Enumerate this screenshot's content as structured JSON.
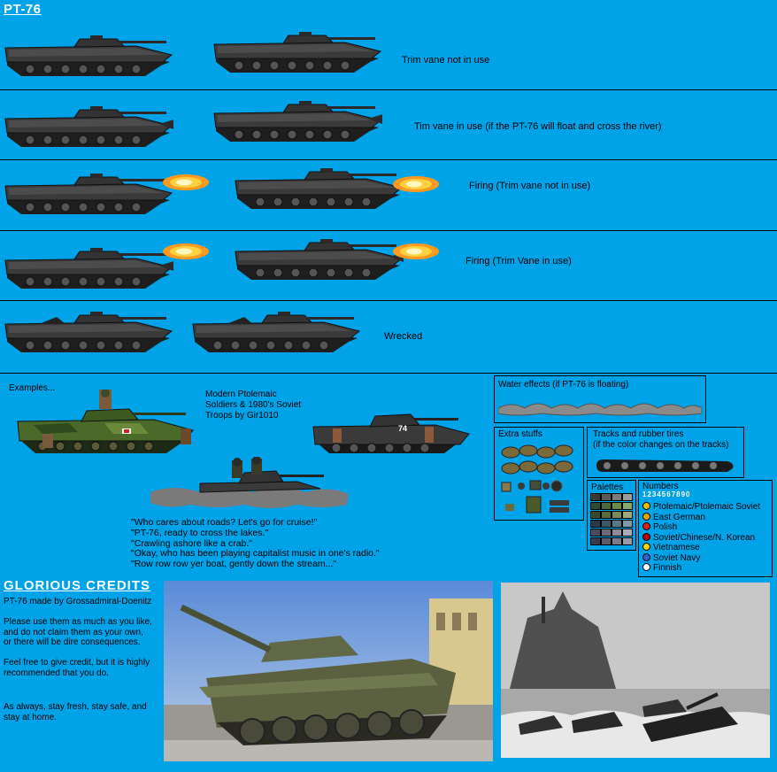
{
  "sheet": {
    "title": "PT-76"
  },
  "rows": [
    {
      "label": "Trim vane not in use"
    },
    {
      "label": "Tim vane in use (if the PT-76 will float and cross the river)"
    },
    {
      "label": "Firing (Trim vane not in use)"
    },
    {
      "label": "Firing (Trim Vane in use)"
    },
    {
      "label": "Wrecked"
    }
  ],
  "examples": {
    "label": "Examples...",
    "credit_lines": [
      "Modern Ptolemaic",
      "Soldiers & 1980's Soviet",
      "Troops by Gir1010"
    ],
    "hull_number": "74",
    "quotes": [
      "\"Who cares about roads? Let's go for cruise!\"",
      "\"PT-76, ready to cross the lakes.\"",
      "\"Crawling ashore like a crab.\"",
      "\"Okay, who has been playing capitalist music in one's radio.\"",
      "\"Row row row yer boat, gently down the stream...\""
    ]
  },
  "water": {
    "label": "Water effects (if PT-76 is floating)"
  },
  "extras": {
    "label": "Extra stuffs"
  },
  "tracks": {
    "label": "Tracks and rubber tires",
    "sublabel": "(if the color changes on the tracks)"
  },
  "palettes": {
    "label": "Palettes",
    "colors": [
      [
        "#3a3a3a",
        "#5a5a5a",
        "#7a7a7a",
        "#9a9a9a"
      ],
      [
        "#2f4a2f",
        "#4a6a3a",
        "#6a8a4a",
        "#8aa86a"
      ],
      [
        "#3a4a2a",
        "#5a6a3a",
        "#7a8a5a",
        "#9aa87a"
      ],
      [
        "#2a3a4a",
        "#3a5a6a",
        "#5a7a8a",
        "#7a9aa8"
      ],
      [
        "#4a4a5a",
        "#6a6a7a",
        "#8a8a9a",
        "#aaaabc"
      ],
      [
        "#3a3a4a",
        "#5a5a6a",
        "#7a7a8a",
        "#9a9aa8"
      ]
    ]
  },
  "numbers": {
    "label": "Numbers",
    "digits": "1234567890",
    "factions": [
      {
        "name": "Ptolemaic/Ptolemaic Soviet",
        "color": "#e8c000"
      },
      {
        "name": "East German",
        "color": "#e8a000"
      },
      {
        "name": "Polish",
        "color": "#e02020"
      },
      {
        "name": "Soviet/Chinese/N. Korean",
        "color": "#c00000"
      },
      {
        "name": "Vietnamese",
        "color": "#ffd000"
      },
      {
        "name": "Soviet Navy",
        "color": "#3060d0"
      },
      {
        "name": "Finnish",
        "color": "#ffffff"
      }
    ]
  },
  "credits": {
    "title": "GLORIOUS CREDITS",
    "author": "PT-76 made by Grossadmiral-Doenitz",
    "para1": [
      "Please use them as much as you like,",
      "and do not claim them as your own,",
      "or there will be dire consequences."
    ],
    "para2": [
      "Feel free to give credit, but it is highly",
      "recommended that you do."
    ],
    "para3": [
      "As always, stay fresh, stay safe, and",
      "stay at home."
    ]
  }
}
